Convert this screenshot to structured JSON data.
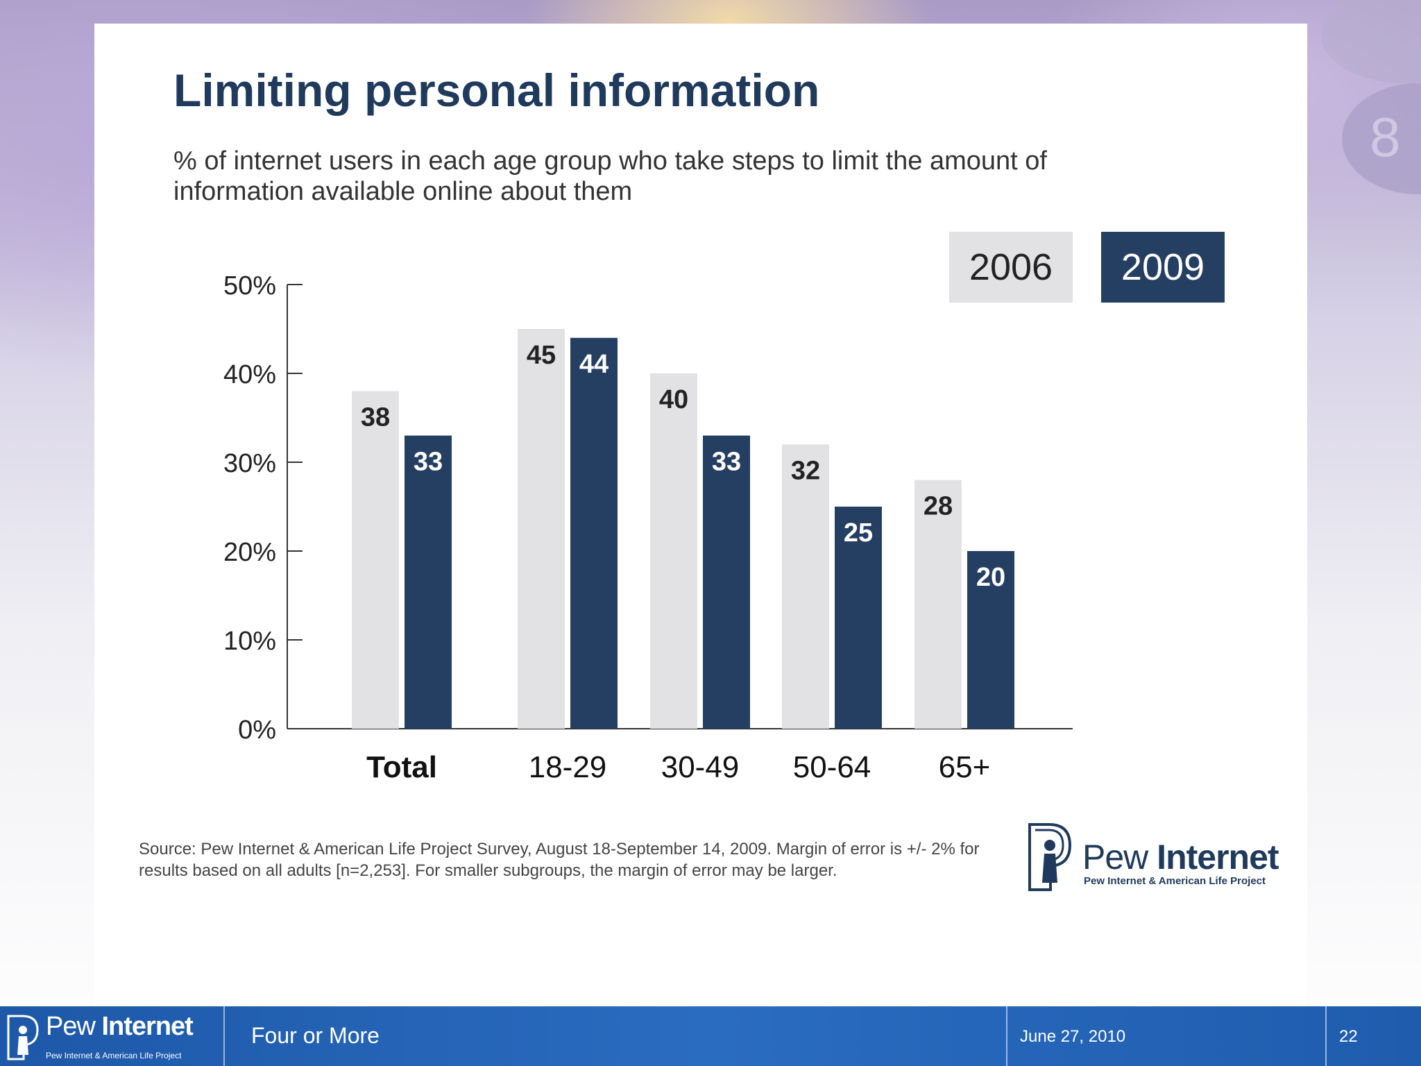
{
  "title": "Limiting personal information",
  "subtitle": "% of internet users in each age group who take steps to limit the amount of information available online about them",
  "legend": {
    "series_a": "2006",
    "series_b": "2009"
  },
  "colors": {
    "series_a": "#e2e2e4",
    "series_b": "#253f63",
    "title": "#1f3a5c",
    "footer": "#2464b4"
  },
  "chart_data": {
    "type": "bar",
    "title": "Limiting personal information",
    "xlabel": "",
    "ylabel": "",
    "categories": [
      "Total",
      "18-29",
      "30-49",
      "50-64",
      "65+"
    ],
    "series": [
      {
        "name": "2006",
        "values": [
          38,
          45,
          40,
          32,
          28
        ]
      },
      {
        "name": "2009",
        "values": [
          33,
          44,
          33,
          25,
          20
        ]
      }
    ],
    "ylim": [
      0,
      50
    ],
    "yticks": [
      "0%",
      "10%",
      "20%",
      "30%",
      "40%",
      "50%"
    ],
    "legend_position": "top-right",
    "grid": false
  },
  "source": "Source: Pew Internet & American Life Project Survey, August 18-September 14, 2009. Margin of error is +/- 2% for results based on all adults [n=2,253]. For smaller subgroups, the margin of error may be larger.",
  "logo": {
    "name_light": "Pew",
    "name_bold": "Internet",
    "tagline": "Pew Internet & American Life Project"
  },
  "footer": {
    "logo_light": "Pew",
    "logo_bold": "Internet",
    "logo_tagline": "Pew Internet & American Life Project",
    "title": "Four or More",
    "date": "June 27, 2010",
    "page": "22"
  }
}
